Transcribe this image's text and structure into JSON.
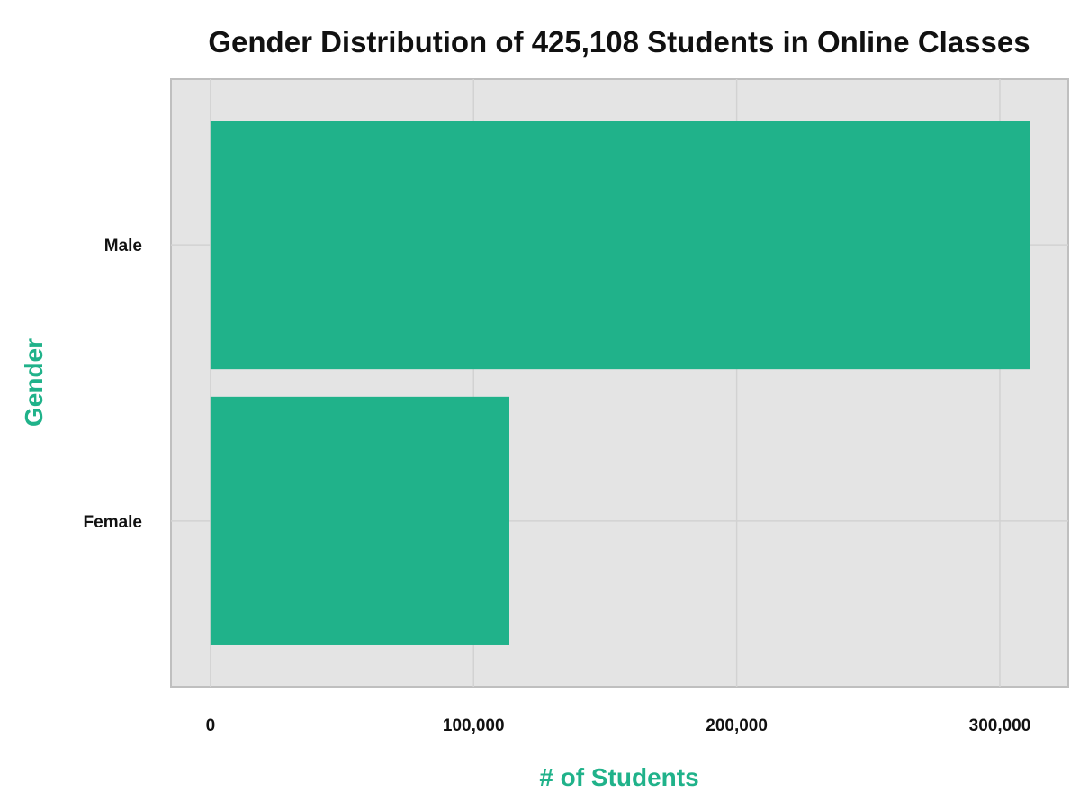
{
  "chart_data": {
    "type": "bar",
    "orientation": "horizontal",
    "title": "Gender Distribution of 425,108 Students in Online Classes",
    "xlabel": "# of Students",
    "ylabel": "Gender",
    "categories": [
      "Male",
      "Female"
    ],
    "values": [
      311500,
      113600
    ],
    "xlim": [
      -15000,
      326000
    ],
    "xticks": [
      0,
      100000,
      200000,
      300000
    ],
    "xtick_labels": [
      "0",
      "100,000",
      "200,000",
      "300,000"
    ],
    "grid": true,
    "legend": "none",
    "colors": {
      "bar": "#20b28a",
      "axis_label": "#20b28a",
      "panel_background": "#e4e4e4",
      "grid": "#d2d2d2",
      "panel_border": "#bfbfbf"
    }
  }
}
